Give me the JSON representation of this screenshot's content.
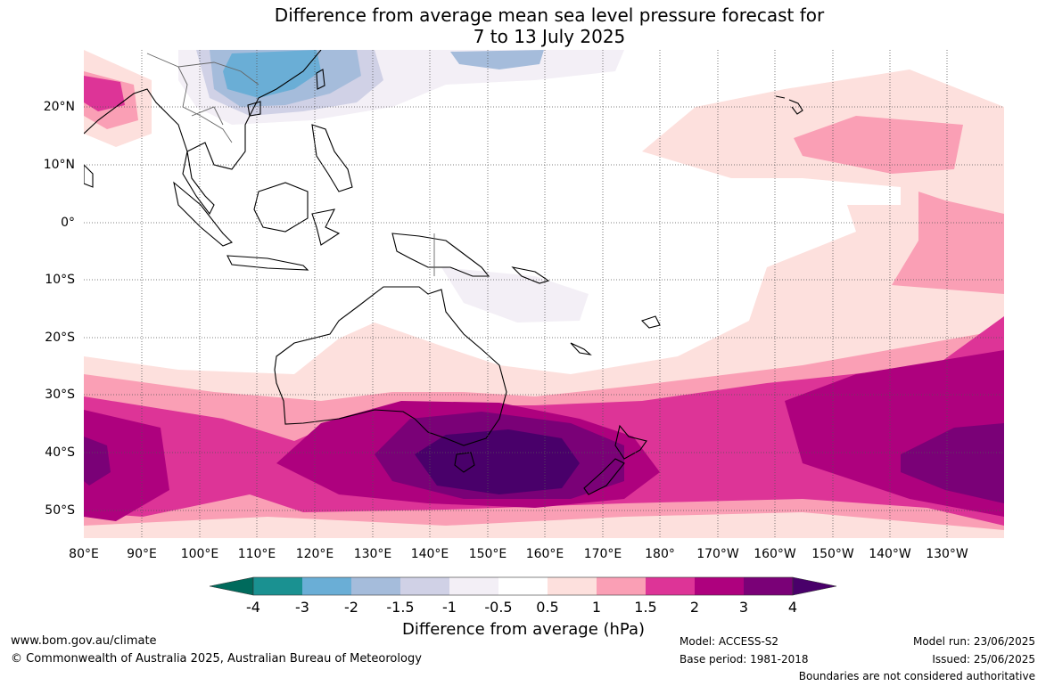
{
  "title": {
    "line1": "Difference from average mean sea level pressure forecast for",
    "line2": "7 to 13 July 2025"
  },
  "map": {
    "lat_labels": [
      "20°N",
      "10°N",
      "0°",
      "10°S",
      "20°S",
      "30°S",
      "40°S",
      "50°S"
    ],
    "lon_labels": [
      "80°E",
      "90°E",
      "100°E",
      "110°E",
      "120°E",
      "130°E",
      "140°E",
      "150°E",
      "160°E",
      "170°E",
      "180°",
      "170°W",
      "160°W",
      "150°W",
      "140°W",
      "130°W"
    ],
    "region": "Australia / Indo-Pacific",
    "lon_range": "80°E to 120°W",
    "lat_range": "55°S to 30°N"
  },
  "colorbar": {
    "label": "Difference from average (hPa)",
    "ticks": [
      "-4",
      "-3",
      "-2",
      "-1.5",
      "-1",
      "-0.5",
      "0.5",
      "1",
      "1.5",
      "2",
      "3",
      "4"
    ],
    "colors": [
      "#006a5c",
      "#1a9191",
      "#6aaed6",
      "#a5bcdb",
      "#d0d1e6",
      "#f3eff6",
      "#ffffff",
      "#fde0dd",
      "#fa9fb5",
      "#dd3497",
      "#ae017e",
      "#7a0177",
      "#49006a"
    ]
  },
  "footer": {
    "website": "www.bom.gov.au/climate",
    "copyright": "© Commonwealth of Australia 2025, Australian Bureau of Meteorology",
    "model": "Model: ACCESS-S2",
    "base_period": "Base period: 1981-2018",
    "model_run": "Model run: 23/06/2025",
    "issued": "Issued: 25/06/2025",
    "disclaimer": "Boundaries are not considered authoritative"
  }
}
